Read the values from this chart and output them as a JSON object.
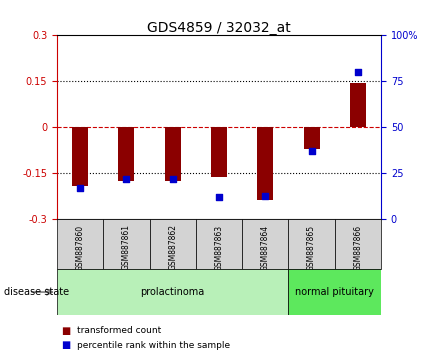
{
  "title": "GDS4859 / 32032_at",
  "samples": [
    "GSM887860",
    "GSM887861",
    "GSM887862",
    "GSM887863",
    "GSM887864",
    "GSM887865",
    "GSM887866"
  ],
  "transformed_counts": [
    -0.19,
    -0.175,
    -0.175,
    -0.16,
    -0.235,
    -0.07,
    0.145
  ],
  "percentile_ranks": [
    17,
    22,
    22,
    12,
    13,
    37,
    80
  ],
  "groups": [
    {
      "label": "prolactinoma",
      "n_samples": 5,
      "color": "#b8f0b8"
    },
    {
      "label": "normal pituitary",
      "n_samples": 2,
      "color": "#5de85d"
    }
  ],
  "ylim": [
    -0.3,
    0.3
  ],
  "yticks_left": [
    -0.3,
    -0.15,
    0,
    0.15,
    0.3
  ],
  "yticks_right": [
    0,
    25,
    50,
    75,
    100
  ],
  "right_tick_labels": [
    "0",
    "25",
    "50",
    "75",
    "100%"
  ],
  "bar_color": "#8b0000",
  "dot_color": "#0000cd",
  "background_color": "#ffffff",
  "disease_state_label": "disease state",
  "legend_bar_label": "transformed count",
  "legend_dot_label": "percentile rank within the sample",
  "group_header_bg": "#d3d3d3",
  "tick_label_fontsize": 7,
  "title_fontsize": 10
}
